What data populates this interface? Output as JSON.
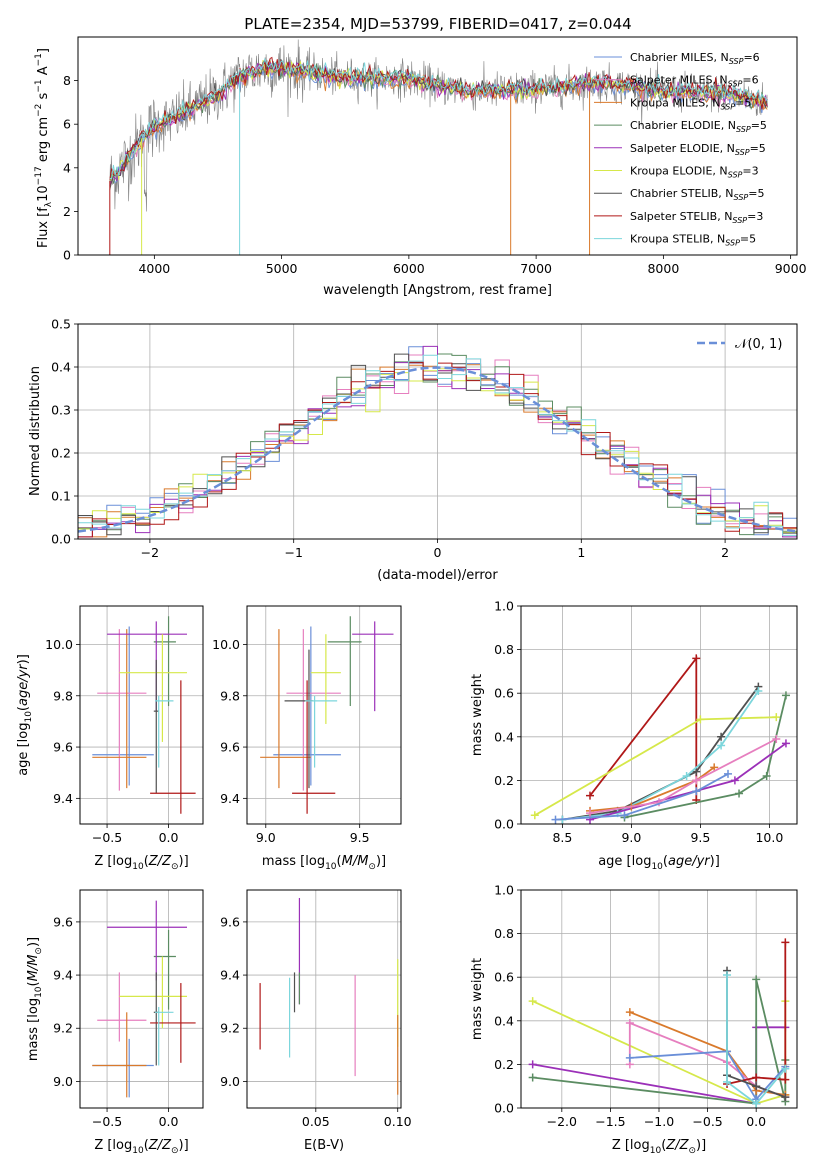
{
  "title": "PLATE=2354, MJD=53799, FIBERID=0417, z=0.044",
  "colors": {
    "Chabrier MILES": "#6a8fd8",
    "Salpeter MILES": "#e67fbf",
    "Kroupa MILES": "#d97a2c",
    "Chabrier ELODIE": "#5b8c62",
    "Salpeter ELODIE": "#9b30b8",
    "Kroupa ELODIE": "#d6e84a",
    "Chabrier STELIB": "#505050",
    "Salpeter STELIB": "#b01818",
    "Kroupa STELIB": "#7cd6dc",
    "data": "#808080",
    "normal": "#6a8fd8"
  },
  "chart_data": [
    {
      "type": "line",
      "name": "spectrum",
      "ylabel": "Flux [f_λ 10^-17 erg cm^-2 s^-1 A^-1]",
      "xlabel": "wavelength [Angstrom, rest frame]",
      "xlim": [
        3400,
        9050
      ],
      "ylim": [
        0,
        10
      ],
      "xticks": [
        4000,
        5000,
        6000,
        7000,
        8000,
        9000
      ],
      "yticks": [
        0,
        2,
        4,
        6,
        8
      ],
      "continuum": [
        [
          3650,
          3.4
        ],
        [
          3750,
          4.1
        ],
        [
          3900,
          5.3
        ],
        [
          4000,
          5.9
        ],
        [
          4100,
          6.1
        ],
        [
          4300,
          6.7
        ],
        [
          4500,
          7.4
        ],
        [
          4700,
          8.3
        ],
        [
          4900,
          8.6
        ],
        [
          5100,
          8.5
        ],
        [
          5400,
          8.2
        ],
        [
          5700,
          8.1
        ],
        [
          6000,
          8.1
        ],
        [
          6200,
          7.8
        ],
        [
          6500,
          7.5
        ],
        [
          7000,
          7.6
        ],
        [
          7500,
          7.9
        ],
        [
          8000,
          7.5
        ],
        [
          8500,
          7.4
        ],
        [
          8800,
          7.0
        ]
      ],
      "legend": [
        {
          "label": "Chabrier MILES, N",
          "sub": "SSP",
          "val": "=6"
        },
        {
          "label": "Salpeter MILES, N",
          "sub": "SSP",
          "val": "=6"
        },
        {
          "label": "Kroupa MILES, N",
          "sub": "SSP",
          "val": "=5"
        },
        {
          "label": "Chabrier ELODIE, N",
          "sub": "SSP",
          "val": "=5"
        },
        {
          "label": "Salpeter ELODIE, N",
          "sub": "SSP",
          "val": "=5"
        },
        {
          "label": "Kroupa ELODIE, N",
          "sub": "SSP",
          "val": "=3"
        },
        {
          "label": "Chabrier STELIB, N",
          "sub": "SSP",
          "val": "=5"
        },
        {
          "label": "Salpeter STELIB, N",
          "sub": "SSP",
          "val": "=3"
        },
        {
          "label": "Kroupa STELIB, N",
          "sub": "SSP",
          "val": "=5"
        }
      ]
    },
    {
      "type": "line",
      "name": "residual-histogram",
      "xlabel": "(data-model)/error",
      "ylabel": "Normed distribution",
      "xlim": [
        -2.5,
        2.5
      ],
      "ylim": [
        0,
        0.5
      ],
      "xticks": [
        -2,
        -1,
        0,
        1,
        2
      ],
      "xticklabels": [
        "−2",
        "−1",
        "0",
        "1",
        "2"
      ],
      "yticks": [
        0.0,
        0.1,
        0.2,
        0.3,
        0.4,
        0.5
      ],
      "yticklabels": [
        "0.0",
        "0.1",
        "0.2",
        "0.3",
        "0.4",
        "0.5"
      ],
      "legend": "𝒩(0, 1)",
      "bin_width": 0.1,
      "bins_start": -2.5
    },
    {
      "type": "scatter",
      "name": "age-vs-Z",
      "xlabel": "Z [log10(Z/Z⊙)]",
      "ylabel": "age [log10(age/yr)]",
      "xlim": [
        -0.72,
        0.28
      ],
      "ylim": [
        9.3,
        10.15
      ],
      "xticks": [
        -0.5,
        0.0
      ],
      "xticklabels": [
        "−0.5",
        "0.0"
      ],
      "yticks": [
        9.4,
        9.6,
        9.8,
        10.0
      ],
      "yticklabels": [
        "9.4",
        "9.6",
        "9.8",
        "10.0"
      ],
      "points": [
        {
          "model": "Chabrier MILES",
          "x": -0.32,
          "xerr": [
            0.3,
            0.2
          ],
          "y": 9.57,
          "yerr": [
            0.12,
            0.5
          ]
        },
        {
          "model": "Salpeter MILES",
          "x": -0.4,
          "xerr": [
            0.18,
            0.22
          ],
          "y": 9.81,
          "yerr": [
            0.38,
            0.25
          ]
        },
        {
          "model": "Kroupa MILES",
          "x": -0.34,
          "xerr": [
            0.28,
            0.16
          ],
          "y": 9.56,
          "yerr": [
            0.12,
            0.5
          ]
        },
        {
          "model": "Chabrier ELODIE",
          "x": 0.0,
          "xerr": [
            0.12,
            0.06
          ],
          "y": 10.01,
          "yerr": [
            0.25,
            0.1
          ]
        },
        {
          "model": "Salpeter ELODIE",
          "x": -0.1,
          "xerr": [
            0.4,
            0.25
          ],
          "y": 10.04,
          "yerr": [
            0.3,
            0.05
          ]
        },
        {
          "model": "Kroupa ELODIE",
          "x": -0.05,
          "xerr": [
            0.35,
            0.2
          ],
          "y": 9.89,
          "yerr": [
            0.27,
            0.15
          ]
        },
        {
          "model": "Chabrier STELIB",
          "x": -0.1,
          "xerr": [
            0.02,
            0.02
          ],
          "y": 9.74,
          "yerr": [
            0.32,
            0.2
          ]
        },
        {
          "model": "Salpeter STELIB",
          "x": 0.1,
          "xerr": [
            0.25,
            0.12
          ],
          "y": 9.42,
          "yerr": [
            0.08,
            0.44
          ]
        },
        {
          "model": "Kroupa STELIB",
          "x": -0.08,
          "xerr": [
            0.03,
            0.12
          ],
          "y": 9.78,
          "yerr": [
            0.26,
            0.02
          ]
        }
      ]
    },
    {
      "type": "scatter",
      "name": "age-vs-mass",
      "xlabel": "mass [log10(M/M⊙)]",
      "xlim": [
        8.9,
        9.72
      ],
      "ylim": [
        9.3,
        10.15
      ],
      "xticks": [
        9.0,
        9.5
      ],
      "xticklabels": [
        "9.0",
        "9.5"
      ],
      "yticks": [
        9.4,
        9.6,
        9.8,
        10.0
      ],
      "yticklabels": [
        "9.4",
        "9.6",
        "9.8",
        "10.0"
      ],
      "points": [
        {
          "model": "Chabrier MILES",
          "x": 9.24,
          "xerr": [
            0.2,
            0.16
          ],
          "y": 9.57,
          "yerr": [
            0.12,
            0.5
          ]
        },
        {
          "model": "Salpeter MILES",
          "x": 9.2,
          "xerr": [
            0.09,
            0.2
          ],
          "y": 9.81,
          "yerr": [
            0.38,
            0.25
          ]
        },
        {
          "model": "Kroupa MILES",
          "x": 9.07,
          "xerr": [
            0.1,
            0.17
          ],
          "y": 9.56,
          "yerr": [
            0.12,
            0.5
          ]
        },
        {
          "model": "Chabrier ELODIE",
          "x": 9.45,
          "xerr": [
            0.12,
            0.06
          ],
          "y": 10.01,
          "yerr": [
            0.25,
            0.1
          ]
        },
        {
          "model": "Salpeter ELODIE",
          "x": 9.58,
          "xerr": [
            0.12,
            0.1
          ],
          "y": 10.04,
          "yerr": [
            0.3,
            0.05
          ]
        },
        {
          "model": "Kroupa ELODIE",
          "x": 9.32,
          "xerr": [
            0.08,
            0.08
          ],
          "y": 9.89,
          "yerr": [
            0.2,
            0.15
          ]
        },
        {
          "model": "Chabrier STELIB",
          "x": 9.23,
          "xerr": [
            0.13,
            0.02
          ],
          "y": 9.78,
          "yerr": [
            0.34,
            0.2
          ]
        },
        {
          "model": "Salpeter STELIB",
          "x": 9.22,
          "xerr": [
            0.08,
            0.15
          ],
          "y": 9.42,
          "yerr": [
            0.08,
            0.44
          ]
        },
        {
          "model": "Kroupa STELIB",
          "x": 9.26,
          "xerr": [
            0.05,
            0.12
          ],
          "y": 9.78,
          "yerr": [
            0.26,
            0.02
          ]
        }
      ]
    },
    {
      "type": "line",
      "name": "massweight-vs-age",
      "xlabel": "age [log10(age/yr)]",
      "ylabel": "mass weight",
      "xlim": [
        8.2,
        10.2
      ],
      "ylim": [
        0,
        1.0
      ],
      "xticks": [
        8.5,
        9.0,
        9.5,
        10.0
      ],
      "xticklabels": [
        "8.5",
        "9.0",
        "9.5",
        "10.0"
      ],
      "yticks": [
        0.0,
        0.2,
        0.4,
        0.6,
        0.8,
        1.0
      ],
      "yticklabels": [
        "0.0",
        "0.2",
        "0.4",
        "0.6",
        "0.8",
        "1.0"
      ],
      "series": [
        {
          "model": "Salpeter STELIB",
          "x": [
            8.7,
            9.47,
            9.47
          ],
          "y": [
            0.13,
            0.76,
            0.11
          ]
        },
        {
          "model": "Kroupa ELODIE",
          "x": [
            8.3,
            9.5,
            10.05
          ],
          "y": [
            0.04,
            0.48,
            0.49
          ]
        },
        {
          "model": "Chabrier STELIB",
          "x": [
            8.5,
            8.9,
            9.47,
            9.65,
            9.92
          ],
          "y": [
            0.02,
            0.06,
            0.24,
            0.4,
            0.63
          ]
        },
        {
          "model": "Kroupa STELIB",
          "x": [
            8.5,
            8.9,
            9.4,
            9.65,
            9.92
          ],
          "y": [
            0.02,
            0.05,
            0.22,
            0.36,
            0.61
          ]
        },
        {
          "model": "Chabrier ELODIE",
          "x": [
            8.95,
            9.78,
            9.98,
            10.12
          ],
          "y": [
            0.03,
            0.14,
            0.22,
            0.59
          ]
        },
        {
          "model": "Salpeter ELODIE",
          "x": [
            8.7,
            9.75,
            10.12
          ],
          "y": [
            0.02,
            0.2,
            0.37
          ]
        },
        {
          "model": "Kroupa MILES",
          "x": [
            8.7,
            9.0,
            9.47,
            9.6
          ],
          "y": [
            0.06,
            0.08,
            0.2,
            0.26
          ]
        },
        {
          "model": "Salpeter MILES",
          "x": [
            8.7,
            9.2,
            9.47,
            10.05
          ],
          "y": [
            0.05,
            0.1,
            0.2,
            0.39
          ]
        },
        {
          "model": "Chabrier MILES",
          "x": [
            8.45,
            8.95,
            9.47,
            9.7
          ],
          "y": [
            0.02,
            0.04,
            0.15,
            0.23
          ]
        }
      ]
    },
    {
      "type": "scatter",
      "name": "mass-vs-Z",
      "xlabel": "Z [log10(Z/Z⊙)]",
      "ylabel": "mass [log10(M/M⊙)]",
      "xlim": [
        -0.72,
        0.28
      ],
      "ylim": [
        8.9,
        9.72
      ],
      "xticks": [
        -0.5,
        0.0
      ],
      "xticklabels": [
        "−0.5",
        "0.0"
      ],
      "yticks": [
        9.0,
        9.2,
        9.4,
        9.6
      ],
      "yticklabels": [
        "9.0",
        "9.2",
        "9.4",
        "9.6"
      ],
      "points": [
        {
          "model": "Chabrier MILES",
          "x": -0.32,
          "xerr": [
            0.3,
            0.2
          ],
          "y": 9.06,
          "yerr": [
            0.12,
            0.1
          ]
        },
        {
          "model": "Salpeter MILES",
          "x": -0.4,
          "xerr": [
            0.18,
            0.22
          ],
          "y": 9.23,
          "yerr": [
            0.08,
            0.18
          ]
        },
        {
          "model": "Kroupa MILES",
          "x": -0.34,
          "xerr": [
            0.28,
            0.16
          ],
          "y": 9.06,
          "yerr": [
            0.12,
            0.2
          ]
        },
        {
          "model": "Chabrier ELODIE",
          "x": 0.0,
          "xerr": [
            0.12,
            0.06
          ],
          "y": 9.47,
          "yerr": [
            0.2,
            0.1
          ]
        },
        {
          "model": "Salpeter ELODIE",
          "x": -0.1,
          "xerr": [
            0.4,
            0.25
          ],
          "y": 9.58,
          "yerr": [
            0.2,
            0.1
          ]
        },
        {
          "model": "Kroupa ELODIE",
          "x": -0.05,
          "xerr": [
            0.35,
            0.2
          ],
          "y": 9.32,
          "yerr": [
            0.12,
            0.15
          ]
        },
        {
          "model": "Chabrier STELIB",
          "x": -0.1,
          "xerr": [
            0.02,
            0.02
          ],
          "y": 9.26,
          "yerr": [
            0.2,
            0.15
          ]
        },
        {
          "model": "Salpeter STELIB",
          "x": 0.1,
          "xerr": [
            0.25,
            0.12
          ],
          "y": 9.22,
          "yerr": [
            0.15,
            0.15
          ]
        },
        {
          "model": "Kroupa STELIB",
          "x": -0.08,
          "xerr": [
            0.03,
            0.12
          ],
          "y": 9.26,
          "yerr": [
            0.2,
            0.02
          ]
        }
      ]
    },
    {
      "type": "scatter",
      "name": "mass-vs-EBV",
      "xlabel": "E(B-V)",
      "xlim": [
        0.008,
        0.102
      ],
      "ylim": [
        8.9,
        9.72
      ],
      "xticks": [
        0.05,
        0.1
      ],
      "xticklabels": [
        "0.05",
        "0.10"
      ],
      "yticks": [
        9.0,
        9.2,
        9.4,
        9.6
      ],
      "yticklabels": [
        "9.0",
        "9.2",
        "9.4",
        "9.6"
      ],
      "points": [
        {
          "model": "Salpeter STELIB",
          "x": 0.016,
          "y": 9.25,
          "yerr": [
            0.13,
            0.12
          ]
        },
        {
          "model": "Kroupa STELIB",
          "x": 0.034,
          "y": 9.24,
          "yerr": [
            0.15,
            0.15
          ]
        },
        {
          "model": "Chabrier STELIB",
          "x": 0.037,
          "y": 9.34,
          "yerr": [
            0.08,
            0.07
          ]
        },
        {
          "model": "Salpeter ELODIE",
          "x": 0.04,
          "y": 9.52,
          "yerr": [
            0.23,
            0.17
          ]
        },
        {
          "model": "Chabrier ELODIE",
          "x": 0.04,
          "y": 9.35,
          "yerr": [
            0.06,
            0.06
          ]
        },
        {
          "model": "Salpeter MILES",
          "x": 0.074,
          "y": 9.21,
          "yerr": [
            0.19,
            0.19
          ]
        },
        {
          "model": "Kroupa ELODIE",
          "x": 0.1,
          "y": 9.33,
          "yerr": [
            0.2,
            0.13
          ]
        },
        {
          "model": "Kroupa MILES",
          "x": 0.1,
          "y": 9.1,
          "yerr": [
            0.15,
            0.15
          ]
        }
      ]
    },
    {
      "type": "line",
      "name": "massweight-vs-Z",
      "xlabel": "Z [log10(Z/Z⊙)]",
      "ylabel": "mass weight",
      "xlim": [
        -2.42,
        0.42
      ],
      "ylim": [
        0,
        1.0
      ],
      "xticks": [
        -2.0,
        -1.5,
        -1.0,
        -0.5,
        0.0
      ],
      "xticklabels": [
        "−2.0",
        "−1.5",
        "−1.0",
        "−0.5",
        "0.0"
      ],
      "yticks": [
        0.0,
        0.2,
        0.4,
        0.6,
        0.8,
        1.0
      ],
      "yticklabels": [
        "0.0",
        "0.2",
        "0.4",
        "0.6",
        "0.8",
        "1.0"
      ],
      "series": [
        {
          "model": "Kroupa ELODIE",
          "x": [
            -2.3,
            0.0,
            0.3,
            0.3
          ],
          "y": [
            0.49,
            0.02,
            0.06,
            0.49
          ]
        },
        {
          "model": "Salpeter ELODIE",
          "x": [
            -2.3,
            0.0,
            0.0,
            0.3
          ],
          "y": [
            0.2,
            0.02,
            0.37,
            0.37
          ]
        },
        {
          "model": "Chabrier ELODIE",
          "x": [
            -2.3,
            0.0,
            0.0,
            0.3,
            0.3
          ],
          "y": [
            0.14,
            0.02,
            0.59,
            0.03,
            0.22
          ]
        },
        {
          "model": "Kroupa MILES",
          "x": [
            -1.3,
            -0.3,
            0.0,
            0.3
          ],
          "y": [
            0.44,
            0.26,
            0.08,
            0.06
          ]
        },
        {
          "model": "Salpeter MILES",
          "x": [
            -1.3,
            -1.3,
            -0.3,
            0.0,
            0.3
          ],
          "y": [
            0.2,
            0.39,
            0.21,
            0.1,
            0.05
          ]
        },
        {
          "model": "Chabrier MILES",
          "x": [
            -1.3,
            -0.3,
            0.0,
            0.3
          ],
          "y": [
            0.23,
            0.26,
            0.04,
            0.19
          ]
        },
        {
          "model": "Salpeter STELIB",
          "x": [
            -0.3,
            0.0,
            0.3,
            0.3
          ],
          "y": [
            0.11,
            0.14,
            0.13,
            0.76
          ]
        },
        {
          "model": "Chabrier STELIB",
          "x": [
            -0.3,
            -0.3,
            0.0,
            0.3
          ],
          "y": [
            0.63,
            0.15,
            0.1,
            0.05
          ]
        },
        {
          "model": "Kroupa STELIB",
          "x": [
            -0.3,
            -0.3,
            0.0,
            0.3
          ],
          "y": [
            0.61,
            0.12,
            0.02,
            0.18
          ]
        }
      ]
    }
  ]
}
